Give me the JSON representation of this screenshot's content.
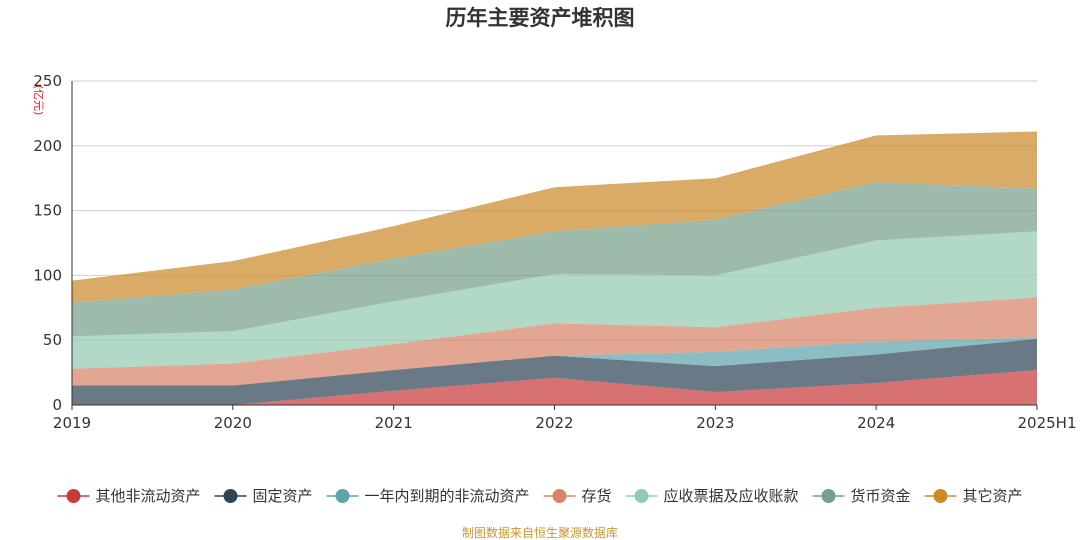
{
  "chart_data": {
    "type": "area",
    "stacked": true,
    "title": "历年主要资产堆积图",
    "ylabel": "(亿元)",
    "xlabel": "",
    "categories": [
      "2019",
      "2020",
      "2021",
      "2022",
      "2023",
      "2024",
      "2025H1"
    ],
    "ylim": [
      0,
      250
    ],
    "yticks": [
      0,
      50,
      100,
      150,
      200,
      250
    ],
    "grid": true,
    "legend_position": "bottom",
    "series": [
      {
        "name": "其他非流动资产",
        "color": "#c93a3a",
        "values": [
          0,
          0,
          11,
          21,
          10,
          17,
          27
        ]
      },
      {
        "name": "固定资产",
        "color": "#2f4556",
        "values": [
          15,
          15,
          16,
          17,
          20,
          22,
          24
        ]
      },
      {
        "name": "一年内到期的非流动资产",
        "color": "#5fa4ad",
        "values": [
          0,
          0,
          0,
          0,
          11,
          10,
          1
        ]
      },
      {
        "name": "存货",
        "color": "#d88468",
        "values": [
          13,
          17,
          20,
          25,
          19,
          26,
          31
        ]
      },
      {
        "name": "应收票据及应收账款",
        "color": "#93cbb0",
        "values": [
          25,
          25,
          33,
          38,
          40,
          52,
          51
        ]
      },
      {
        "name": "货币资金",
        "color": "#77a08a",
        "values": [
          26,
          32,
          33,
          33,
          43,
          45,
          33
        ]
      },
      {
        "name": "其它资产",
        "color": "#cc8a2b",
        "values": [
          17,
          22,
          25,
          34,
          32,
          36,
          44
        ]
      }
    ]
  },
  "footer": {
    "source": "制图数据来自恒生聚源数据库"
  }
}
